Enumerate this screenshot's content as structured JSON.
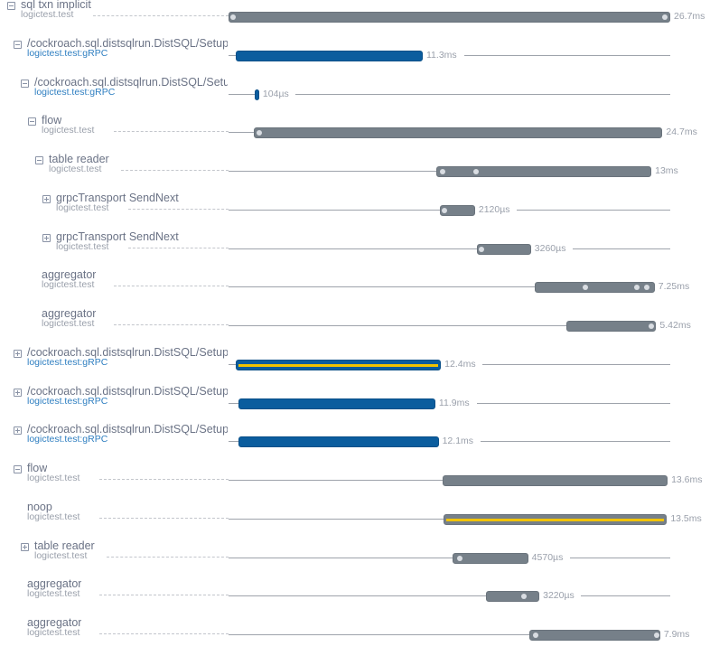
{
  "timeline": {
    "total_ms": 26.7
  },
  "colors": {
    "gray_bar": "#768089",
    "blue_bar": "#0b5d9e",
    "highlight": "#f2c300",
    "grpc_text": "#2f7fc1"
  },
  "spans": [
    {
      "title": "sql txn implicit",
      "subtitle": "logictest.test",
      "toggle": "collapse",
      "depth": 0,
      "color": "gray",
      "offset_ms": 0,
      "duration_label": "26.7ms",
      "duration_ms": 26.7,
      "markers_ms": [
        0.2,
        26.3
      ],
      "highlight": false
    },
    {
      "title": "/cockroach.sql.distsqlrun.DistSQL/SetupFlow",
      "subtitle": "logictest.test:gRPC",
      "toggle": "collapse",
      "depth": 1,
      "color": "blue",
      "offset_ms": 0.44,
      "duration_label": "11.3ms",
      "duration_ms": 11.3,
      "markers_ms": [],
      "highlight": false
    },
    {
      "title": "/cockroach.sql.distsqlrun.DistSQL/SetupFlow",
      "subtitle": "logictest.test:gRPC",
      "toggle": "collapse",
      "depth": 2,
      "color": "blue",
      "offset_ms": 1.58,
      "duration_label": "104µs",
      "duration_ms": 0.104,
      "markers_ms": [],
      "highlight": false
    },
    {
      "title": "flow",
      "subtitle": "logictest.test",
      "toggle": "collapse",
      "depth": 3,
      "color": "gray",
      "offset_ms": 1.53,
      "duration_label": "24.7ms",
      "duration_ms": 24.7,
      "markers_ms": [
        1.8
      ],
      "highlight": false
    },
    {
      "title": "table reader",
      "subtitle": "logictest.test",
      "toggle": "collapse",
      "depth": 4,
      "color": "gray",
      "offset_ms": 12.56,
      "duration_label": "13ms",
      "duration_ms": 13,
      "markers_ms": [
        12.9,
        14.9
      ],
      "highlight": false
    },
    {
      "title": "grpcTransport SendNext",
      "subtitle": "logictest.test",
      "toggle": "expand",
      "depth": 5,
      "color": "gray",
      "offset_ms": 12.78,
      "duration_label": "2120µs",
      "duration_ms": 2.12,
      "markers_ms": [
        13.0
      ],
      "highlight": false
    },
    {
      "title": "grpcTransport SendNext",
      "subtitle": "logictest.test",
      "toggle": "expand",
      "depth": 5,
      "color": "gray",
      "offset_ms": 15.02,
      "duration_label": "3260µs",
      "duration_ms": 3.26,
      "markers_ms": [
        15.2
      ],
      "highlight": false
    },
    {
      "title": "aggregator",
      "subtitle": "logictest.test",
      "toggle": "none",
      "depth": 5,
      "color": "gray",
      "offset_ms": 18.51,
      "duration_label": "7.25ms",
      "duration_ms": 7.25,
      "markers_ms": [
        21.5,
        24.6,
        25.2
      ],
      "highlight": false
    },
    {
      "title": "aggregator",
      "subtitle": "logictest.test",
      "toggle": "none",
      "depth": 5,
      "color": "gray",
      "offset_ms": 20.43,
      "duration_label": "5.42ms",
      "duration_ms": 5.42,
      "markers_ms": [
        25.5
      ],
      "highlight": false
    },
    {
      "title": "/cockroach.sql.distsqlrun.DistSQL/SetupFlow",
      "subtitle": "logictest.test:gRPC",
      "toggle": "expand",
      "depth": 1,
      "color": "blue",
      "offset_ms": 0.44,
      "duration_label": "12.4ms",
      "duration_ms": 12.4,
      "markers_ms": [],
      "highlight": true
    },
    {
      "title": "/cockroach.sql.distsqlrun.DistSQL/SetupFlow",
      "subtitle": "logictest.test:gRPC",
      "toggle": "expand",
      "depth": 1,
      "color": "blue",
      "offset_ms": 0.6,
      "duration_label": "11.9ms",
      "duration_ms": 11.9,
      "markers_ms": [],
      "highlight": false
    },
    {
      "title": "/cockroach.sql.distsqlrun.DistSQL/SetupFlow",
      "subtitle": "logictest.test:gRPC",
      "toggle": "expand",
      "depth": 1,
      "color": "blue",
      "offset_ms": 0.6,
      "duration_label": "12.1ms",
      "duration_ms": 12.1,
      "markers_ms": [],
      "highlight": false
    },
    {
      "title": "flow",
      "subtitle": "logictest.test",
      "toggle": "collapse",
      "depth": 1,
      "color": "gray",
      "offset_ms": 12.94,
      "duration_label": "13.6ms",
      "duration_ms": 13.6,
      "markers_ms": [],
      "highlight": false
    },
    {
      "title": "noop",
      "subtitle": "logictest.test",
      "toggle": "none",
      "depth": 2,
      "color": "gray",
      "offset_ms": 13.0,
      "duration_label": "13.5ms",
      "duration_ms": 13.5,
      "markers_ms": [],
      "highlight": true
    },
    {
      "title": "table reader",
      "subtitle": "logictest.test",
      "toggle": "expand",
      "depth": 2,
      "color": "gray",
      "offset_ms": 13.54,
      "duration_label": "4570µs",
      "duration_ms": 4.57,
      "markers_ms": [
        13.9
      ],
      "highlight": false
    },
    {
      "title": "aggregator",
      "subtitle": "logictest.test",
      "toggle": "none",
      "depth": 2,
      "color": "gray",
      "offset_ms": 15.57,
      "duration_label": "3220µs",
      "duration_ms": 3.22,
      "markers_ms": [
        17.8
      ],
      "highlight": false
    },
    {
      "title": "aggregator",
      "subtitle": "logictest.test",
      "toggle": "none",
      "depth": 2,
      "color": "gray",
      "offset_ms": 18.19,
      "duration_label": "7.9ms",
      "duration_ms": 7.9,
      "markers_ms": [
        18.5,
        26.0
      ],
      "highlight": false
    }
  ]
}
